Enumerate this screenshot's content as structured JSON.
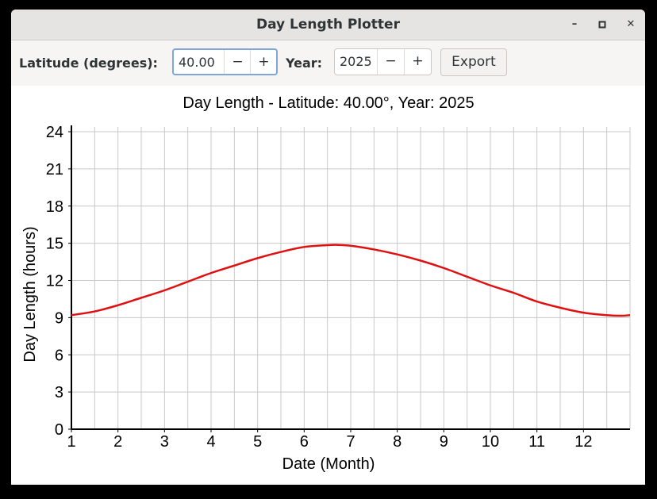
{
  "window": {
    "title": "Day Length Plotter"
  },
  "window_controls": {
    "minimize": "–",
    "maximize": "▫",
    "close": "✕"
  },
  "toolbar": {
    "latitude_label": "Latitude (degrees):",
    "latitude_value": "40.00",
    "year_label": "Year:",
    "year_value": "2025",
    "decrement": "−",
    "increment": "+",
    "export_label": "Export"
  },
  "chart_data": {
    "type": "line",
    "title": "Day Length - Latitude: 40.00°, Year: 2025",
    "xlabel": "Date (Month)",
    "ylabel": "Day Length (hours)",
    "xlim": [
      1,
      13
    ],
    "ylim": [
      0,
      24
    ],
    "x_ticks": [
      1,
      2,
      3,
      4,
      5,
      6,
      7,
      8,
      9,
      10,
      11,
      12
    ],
    "y_ticks": [
      0,
      3,
      6,
      9,
      12,
      15,
      18,
      21,
      24
    ],
    "grid": true,
    "line_color": "#e01010",
    "series": [
      {
        "x": [
          1.0,
          1.5,
          2.0,
          2.5,
          3.0,
          3.5,
          4.0,
          4.5,
          5.0,
          5.5,
          6.0,
          6.5,
          6.7,
          7.0,
          7.5,
          8.0,
          8.5,
          9.0,
          9.5,
          10.0,
          10.5,
          11.0,
          11.5,
          12.0,
          12.5,
          12.8,
          13.0
        ],
        "y": [
          9.2,
          9.5,
          10.0,
          10.6,
          11.2,
          11.9,
          12.6,
          13.2,
          13.8,
          14.3,
          14.7,
          14.85,
          14.87,
          14.8,
          14.5,
          14.1,
          13.6,
          13.0,
          12.3,
          11.6,
          11.0,
          10.3,
          9.8,
          9.4,
          9.2,
          9.15,
          9.2
        ]
      }
    ]
  }
}
